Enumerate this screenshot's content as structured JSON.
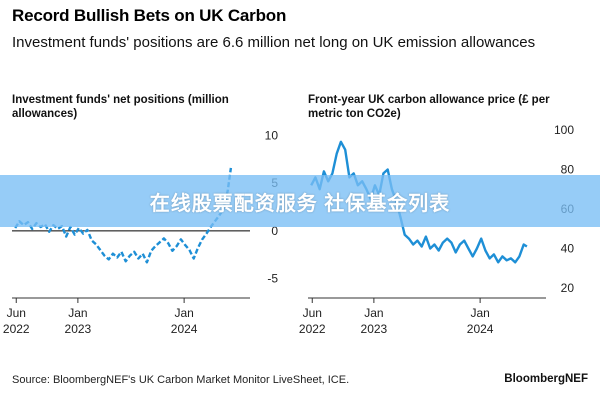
{
  "header": {
    "title": "Record Bullish Bets on UK Carbon",
    "subtitle": "Investment funds' positions are 6.6 million net long on UK emission allowances"
  },
  "footer": {
    "source": "Source: BloombergNEF's UK Carbon Market Monitor LiveSheet, ICE.",
    "brand": "BloombergNEF"
  },
  "watermark": "在线股票配资服务 社保基金列表",
  "colors": {
    "series": "#1e8fd6",
    "axis": "#333333",
    "zero_line": "#000000"
  },
  "chart_data": [
    {
      "type": "line",
      "title": "Investment funds' net positions (million allowances)",
      "line_style": "dashed",
      "ylim": [
        -6,
        11
      ],
      "yticks": [
        10,
        5,
        0,
        -5
      ],
      "xlim": [
        2022.38,
        2024.62
      ],
      "xticks": [
        {
          "pos": 2022.42,
          "label": [
            "Jun",
            "2022"
          ]
        },
        {
          "pos": 2023.0,
          "label": [
            "Jan",
            "2023"
          ]
        },
        {
          "pos": 2024.0,
          "label": [
            "Jan",
            "2024"
          ]
        }
      ],
      "zero_line": true,
      "series": [
        {
          "x": [
            2022.41,
            2022.45,
            2022.49,
            2022.53,
            2022.57,
            2022.61,
            2022.65,
            2022.69,
            2022.73,
            2022.77,
            2022.81,
            2022.85,
            2022.89,
            2022.93,
            2022.97,
            2023.01,
            2023.05,
            2023.09,
            2023.13,
            2023.17,
            2023.21,
            2023.25,
            2023.29,
            2023.33,
            2023.37,
            2023.41,
            2023.45,
            2023.49,
            2023.53,
            2023.57,
            2023.61,
            2023.65,
            2023.69,
            2023.73,
            2023.77,
            2023.81,
            2023.85,
            2023.89,
            2023.93,
            2023.97,
            2024.01,
            2024.05,
            2024.09,
            2024.13,
            2024.17,
            2024.21,
            2024.25,
            2024.29,
            2024.33,
            2024.37,
            2024.41,
            2024.44
          ],
          "y": [
            0.3,
            1.0,
            0.6,
            0.9,
            0.2,
            0.8,
            0.4,
            0.7,
            -0.1,
            0.6,
            0.2,
            0.5,
            -0.6,
            0.4,
            -0.4,
            0.3,
            -0.3,
            0.1,
            -1.0,
            -1.4,
            -2.0,
            -2.6,
            -3.0,
            -2.4,
            -2.8,
            -2.2,
            -3.2,
            -2.6,
            -2.2,
            -2.9,
            -2.4,
            -3.3,
            -2.1,
            -1.6,
            -1.2,
            -0.8,
            -1.3,
            -2.1,
            -1.6,
            -0.9,
            -1.5,
            -2.0,
            -2.9,
            -1.8,
            -0.9,
            -0.3,
            0.4,
            1.0,
            1.6,
            2.3,
            4.2,
            6.6
          ]
        }
      ]
    },
    {
      "type": "line",
      "title": "Front-year UK carbon allowance price (£ per metric ton CO2e)",
      "line_style": "solid",
      "ylim": [
        20,
        102
      ],
      "yticks": [
        100,
        80,
        60,
        40,
        20
      ],
      "xlim": [
        2022.38,
        2024.62
      ],
      "xticks": [
        {
          "pos": 2022.42,
          "label": [
            "Jun",
            "2022"
          ]
        },
        {
          "pos": 2023.0,
          "label": [
            "Jan",
            "2023"
          ]
        },
        {
          "pos": 2024.0,
          "label": [
            "Jan",
            "2024"
          ]
        }
      ],
      "zero_line": false,
      "series": [
        {
          "x": [
            2022.41,
            2022.45,
            2022.49,
            2022.53,
            2022.57,
            2022.61,
            2022.65,
            2022.69,
            2022.73,
            2022.77,
            2022.81,
            2022.85,
            2022.89,
            2022.93,
            2022.97,
            2023.01,
            2023.05,
            2023.09,
            2023.13,
            2023.17,
            2023.21,
            2023.25,
            2023.29,
            2023.33,
            2023.37,
            2023.41,
            2023.45,
            2023.49,
            2023.53,
            2023.57,
            2023.61,
            2023.65,
            2023.69,
            2023.73,
            2023.77,
            2023.81,
            2023.85,
            2023.89,
            2023.93,
            2023.97,
            2024.01,
            2024.05,
            2024.09,
            2024.13,
            2024.17,
            2024.21,
            2024.25,
            2024.29,
            2024.33,
            2024.37,
            2024.41,
            2024.44
          ],
          "y": [
            72,
            76,
            70,
            79,
            74,
            78,
            88,
            94,
            90,
            76,
            78,
            72,
            74,
            70,
            65,
            72,
            67,
            78,
            80,
            70,
            64,
            56,
            47,
            45,
            42,
            44,
            41,
            46,
            40,
            42,
            39,
            43,
            45,
            43,
            38,
            42,
            44,
            40,
            36,
            40,
            45,
            39,
            35,
            37,
            33,
            36,
            34,
            35,
            33,
            36,
            42,
            41
          ]
        }
      ]
    }
  ]
}
